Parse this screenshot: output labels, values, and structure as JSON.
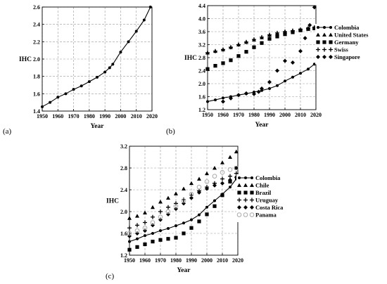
{
  "chart_data": [
    {
      "panel_label": "(a)",
      "type": "line",
      "xlabel": "Year",
      "ylabel": "IHC",
      "xlim": [
        1950,
        2020
      ],
      "ylim": [
        1.4,
        2.6
      ],
      "xticks": [
        1950,
        1960,
        1970,
        1980,
        1990,
        2000,
        2010,
        2020
      ],
      "yticks": [
        1.4,
        1.6,
        1.8,
        2.0,
        2.2,
        2.4,
        2.6
      ],
      "grid": true,
      "legend": "none",
      "series": [
        {
          "name": "Colombia",
          "marker": "circle-line",
          "color": "#000000",
          "points": [
            [
              1950,
              1.45
            ],
            [
              1955,
              1.5
            ],
            [
              1960,
              1.56
            ],
            [
              1965,
              1.6
            ],
            [
              1970,
              1.65
            ],
            [
              1975,
              1.69
            ],
            [
              1980,
              1.74
            ],
            [
              1985,
              1.79
            ],
            [
              1990,
              1.85
            ],
            [
              1993,
              1.9
            ],
            [
              1995,
              1.94
            ],
            [
              2000,
              2.08
            ],
            [
              2005,
              2.2
            ],
            [
              2010,
              2.32
            ],
            [
              2015,
              2.45
            ],
            [
              2019,
              2.6
            ]
          ]
        }
      ]
    },
    {
      "panel_label": "(b)",
      "type": "scatter",
      "xlabel": "Year",
      "ylabel": "IHC",
      "xlim": [
        1950,
        2020
      ],
      "ylim": [
        1.2,
        4.4
      ],
      "xticks": [
        1950,
        1960,
        1970,
        1980,
        1990,
        2000,
        2010,
        2020
      ],
      "yticks": [
        1.2,
        1.6,
        2.0,
        2.4,
        2.8,
        3.2,
        3.6,
        4.0,
        4.4
      ],
      "grid": true,
      "legend": "right",
      "series": [
        {
          "name": "Colombia",
          "marker": "circle-line",
          "color": "#000000",
          "points": [
            [
              1950,
              1.45
            ],
            [
              1955,
              1.5
            ],
            [
              1960,
              1.56
            ],
            [
              1965,
              1.6
            ],
            [
              1970,
              1.65
            ],
            [
              1975,
              1.69
            ],
            [
              1980,
              1.74
            ],
            [
              1985,
              1.79
            ],
            [
              1990,
              1.85
            ],
            [
              1995,
              1.94
            ],
            [
              2000,
              2.08
            ],
            [
              2005,
              2.2
            ],
            [
              2010,
              2.32
            ],
            [
              2015,
              2.45
            ],
            [
              2019,
              2.6
            ]
          ]
        },
        {
          "name": "United States",
          "marker": "triangle",
          "color": "#000000",
          "points": [
            [
              1950,
              2.95
            ],
            [
              1955,
              3.0
            ],
            [
              1960,
              3.05
            ],
            [
              1965,
              3.12
            ],
            [
              1970,
              3.2
            ],
            [
              1975,
              3.28
            ],
            [
              1980,
              3.35
            ],
            [
              1985,
              3.42
            ],
            [
              1990,
              3.5
            ],
            [
              1995,
              3.55
            ],
            [
              2000,
              3.6
            ],
            [
              2005,
              3.63
            ],
            [
              2010,
              3.66
            ],
            [
              2015,
              3.7
            ],
            [
              2019,
              3.73
            ]
          ]
        },
        {
          "name": "Germany",
          "marker": "square",
          "color": "#000000",
          "points": [
            [
              1950,
              2.45
            ],
            [
              1955,
              2.55
            ],
            [
              1960,
              2.63
            ],
            [
              1965,
              2.72
            ],
            [
              1970,
              2.85
            ],
            [
              1975,
              2.98
            ],
            [
              1980,
              3.12
            ],
            [
              1985,
              3.25
            ],
            [
              1990,
              3.38
            ],
            [
              1995,
              3.45
            ],
            [
              2000,
              3.52
            ],
            [
              2005,
              3.58
            ],
            [
              2010,
              3.64
            ],
            [
              2015,
              3.68
            ],
            [
              2019,
              3.7
            ]
          ]
        },
        {
          "name": "Swiss",
          "marker": "plus",
          "color": "#000000",
          "points": [
            [
              1950,
              2.95
            ],
            [
              1955,
              3.0
            ],
            [
              1960,
              3.05
            ],
            [
              1965,
              3.12
            ],
            [
              1970,
              3.2
            ],
            [
              1975,
              3.28
            ],
            [
              1980,
              3.36
            ],
            [
              1985,
              3.43
            ],
            [
              1990,
              3.5
            ],
            [
              1995,
              3.56
            ],
            [
              2000,
              3.6
            ],
            [
              2005,
              3.63
            ],
            [
              2010,
              3.66
            ],
            [
              2015,
              3.7
            ],
            [
              2019,
              3.73
            ]
          ]
        },
        {
          "name": "Singapore",
          "marker": "diamond",
          "color": "#000000",
          "points": [
            [
              1960,
              1.45
            ],
            [
              1965,
              1.55
            ],
            [
              1970,
              1.65
            ],
            [
              1975,
              1.7
            ],
            [
              1980,
              1.68
            ],
            [
              1983,
              1.75
            ],
            [
              1985,
              1.85
            ],
            [
              1990,
              2.05
            ],
            [
              1995,
              2.4
            ],
            [
              2000,
              2.7
            ],
            [
              2005,
              2.65
            ],
            [
              2010,
              3.0
            ],
            [
              2013,
              3.4
            ],
            [
              2016,
              3.8
            ],
            [
              2019,
              4.35
            ]
          ]
        }
      ]
    },
    {
      "panel_label": "(c)",
      "type": "scatter",
      "xlabel": "Year",
      "ylabel": "IHC",
      "xlim": [
        1950,
        2020
      ],
      "ylim": [
        1.2,
        3.2
      ],
      "xticks": [
        1950,
        1960,
        1970,
        1980,
        1990,
        2000,
        2010,
        2020
      ],
      "yticks": [
        1.2,
        1.6,
        2.0,
        2.4,
        2.8,
        3.2
      ],
      "grid": true,
      "legend": "right",
      "series": [
        {
          "name": "Colombia",
          "marker": "circle-line",
          "color": "#000000",
          "points": [
            [
              1950,
              1.45
            ],
            [
              1955,
              1.5
            ],
            [
              1960,
              1.56
            ],
            [
              1965,
              1.6
            ],
            [
              1970,
              1.65
            ],
            [
              1975,
              1.69
            ],
            [
              1980,
              1.74
            ],
            [
              1985,
              1.79
            ],
            [
              1990,
              1.85
            ],
            [
              1995,
              1.94
            ],
            [
              2000,
              2.08
            ],
            [
              2005,
              2.2
            ],
            [
              2010,
              2.32
            ],
            [
              2015,
              2.45
            ],
            [
              2019,
              2.6
            ]
          ]
        },
        {
          "name": "Chile",
          "marker": "triangle",
          "color": "#000000",
          "points": [
            [
              1950,
              1.88
            ],
            [
              1955,
              1.92
            ],
            [
              1960,
              1.98
            ],
            [
              1965,
              2.08
            ],
            [
              1970,
              2.18
            ],
            [
              1975,
              2.25
            ],
            [
              1980,
              2.33
            ],
            [
              1985,
              2.42
            ],
            [
              1990,
              2.52
            ],
            [
              1995,
              2.6
            ],
            [
              2000,
              2.7
            ],
            [
              2005,
              2.8
            ],
            [
              2010,
              2.9
            ],
            [
              2015,
              3.0
            ],
            [
              2019,
              3.1
            ]
          ]
        },
        {
          "name": "Brazil",
          "marker": "square",
          "color": "#000000",
          "points": [
            [
              1950,
              1.3
            ],
            [
              1955,
              1.35
            ],
            [
              1960,
              1.4
            ],
            [
              1965,
              1.45
            ],
            [
              1970,
              1.48
            ],
            [
              1975,
              1.5
            ],
            [
              1980,
              1.52
            ],
            [
              1985,
              1.6
            ],
            [
              1990,
              1.7
            ],
            [
              1995,
              1.82
            ],
            [
              2000,
              1.95
            ],
            [
              2005,
              2.1
            ],
            [
              2010,
              2.3
            ],
            [
              2015,
              2.55
            ],
            [
              2019,
              2.8
            ]
          ]
        },
        {
          "name": "Uruguay",
          "marker": "plus",
          "color": "#000000",
          "points": [
            [
              1950,
              1.7
            ],
            [
              1955,
              1.75
            ],
            [
              1960,
              1.8
            ],
            [
              1965,
              1.9
            ],
            [
              1970,
              2.0
            ],
            [
              1975,
              2.08
            ],
            [
              1980,
              2.15
            ],
            [
              1985,
              2.22
            ],
            [
              1990,
              2.3
            ],
            [
              1995,
              2.38
            ],
            [
              2000,
              2.45
            ],
            [
              2005,
              2.52
            ],
            [
              2010,
              2.6
            ],
            [
              2015,
              2.65
            ],
            [
              2019,
              2.7
            ]
          ]
        },
        {
          "name": "Costa Rica",
          "marker": "diamond",
          "color": "#000000",
          "points": [
            [
              1950,
              1.55
            ],
            [
              1955,
              1.6
            ],
            [
              1960,
              1.65
            ],
            [
              1965,
              1.75
            ],
            [
              1970,
              1.85
            ],
            [
              1975,
              1.95
            ],
            [
              1980,
              2.05
            ],
            [
              1985,
              2.15
            ],
            [
              1990,
              2.25
            ],
            [
              1995,
              2.35
            ],
            [
              2000,
              2.42
            ],
            [
              2005,
              2.48
            ],
            [
              2010,
              2.52
            ],
            [
              2015,
              2.58
            ],
            [
              2019,
              2.63
            ]
          ]
        },
        {
          "name": "Panama",
          "marker": "open-circle",
          "color": "#aaaaaa",
          "points": [
            [
              1950,
              1.6
            ],
            [
              1955,
              1.65
            ],
            [
              1960,
              1.7
            ],
            [
              1965,
              1.8
            ],
            [
              1970,
              1.9
            ],
            [
              1975,
              2.0
            ],
            [
              1980,
              2.1
            ],
            [
              1985,
              2.2
            ],
            [
              1990,
              2.32
            ],
            [
              1995,
              2.45
            ],
            [
              2000,
              2.55
            ],
            [
              2005,
              2.65
            ],
            [
              2010,
              2.72
            ],
            [
              2015,
              2.77
            ],
            [
              2019,
              2.8
            ]
          ]
        }
      ]
    }
  ]
}
